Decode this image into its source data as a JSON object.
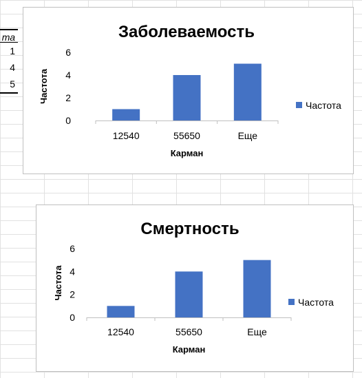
{
  "sheet": {
    "left_table": {
      "header": "та",
      "values": [
        "1",
        "4",
        "5"
      ]
    }
  },
  "chart_data": [
    {
      "type": "bar",
      "title": "Заболеваемость",
      "xlabel": "Карман",
      "ylabel": "Частота",
      "categories": [
        "12540",
        "55650",
        "Еще"
      ],
      "series": [
        {
          "name": "Частота",
          "values": [
            1,
            4,
            5
          ],
          "color": "#4472c4"
        }
      ],
      "ylim": [
        0,
        6
      ],
      "yticks": [
        0,
        2,
        4,
        6
      ],
      "grid": false,
      "legend": "right"
    },
    {
      "type": "bar",
      "title": "Смертность",
      "xlabel": "Карман",
      "ylabel": "Частота",
      "categories": [
        "12540",
        "55650",
        "Еще"
      ],
      "series": [
        {
          "name": "Частота",
          "values": [
            1,
            4,
            5
          ],
          "color": "#4472c4"
        }
      ],
      "ylim": [
        0,
        6
      ],
      "yticks": [
        0,
        2,
        4,
        6
      ],
      "grid": false,
      "legend": "right"
    }
  ]
}
